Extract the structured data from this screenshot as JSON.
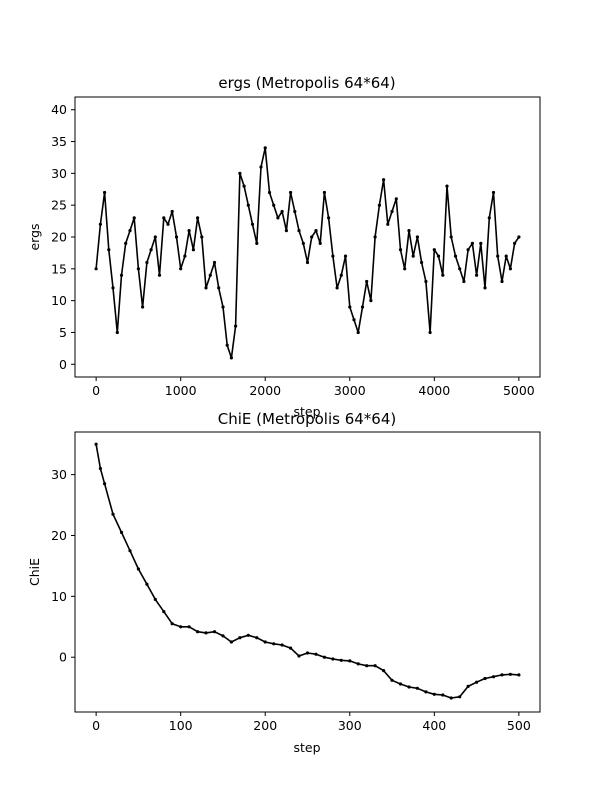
{
  "chart_data": [
    {
      "type": "line",
      "title": "ergs (Metropolis 64*64)",
      "xlabel": "step",
      "ylabel": "ergs",
      "xlim": [
        -250,
        5250
      ],
      "ylim": [
        -2,
        42
      ],
      "xticks": [
        0,
        1000,
        2000,
        3000,
        4000,
        5000
      ],
      "yticks": [
        0,
        5,
        10,
        15,
        20,
        25,
        30,
        35,
        40
      ],
      "marker": "small dots with connecting line",
      "color": "#000000",
      "series": [
        {
          "x": [
            0,
            50,
            100,
            150,
            200,
            250,
            300,
            350,
            400,
            450,
            500,
            550,
            600,
            650,
            700,
            750,
            800,
            850,
            900,
            950,
            1000,
            1050,
            1100,
            1150,
            1200,
            1250,
            1300,
            1350,
            1400,
            1450,
            1500,
            1550,
            1600,
            1650,
            1700,
            1750,
            1800,
            1850,
            1900,
            1950,
            2000,
            2050,
            2100,
            2150,
            2200,
            2250,
            2300,
            2350,
            2400,
            2450,
            2500,
            2550,
            2600,
            2650,
            2700,
            2750,
            2800,
            2850,
            2900,
            2950,
            3000,
            3050,
            3100,
            3150,
            3200,
            3250,
            3300,
            3350,
            3400,
            3450,
            3500,
            3550,
            3600,
            3650,
            3700,
            3750,
            3800,
            3850,
            3900,
            3950,
            4000,
            4050,
            4100,
            4150,
            4200,
            4250,
            4300,
            4350,
            4400,
            4450,
            4500,
            4550,
            4600,
            4650,
            4700,
            4750,
            4800,
            4850,
            4900,
            4950,
            5000
          ],
          "y": [
            15,
            22,
            27,
            18,
            12,
            5,
            14,
            19,
            21,
            23,
            15,
            9,
            16,
            18,
            20,
            14,
            23,
            22,
            24,
            20,
            15,
            17,
            21,
            18,
            23,
            20,
            12,
            14,
            16,
            12,
            9,
            3,
            1,
            6,
            30,
            28,
            25,
            22,
            19,
            31,
            34,
            27,
            25,
            23,
            24,
            21,
            27,
            24,
            21,
            19,
            16,
            20,
            21,
            19,
            27,
            23,
            17,
            12,
            14,
            17,
            9,
            7,
            5,
            9,
            13,
            10,
            20,
            25,
            29,
            22,
            24,
            26,
            18,
            15,
            21,
            17,
            20,
            16,
            13,
            5,
            18,
            17,
            14,
            28,
            20,
            17,
            15,
            13,
            18,
            19,
            14,
            19,
            12,
            23,
            27,
            17,
            13,
            17,
            15,
            19,
            20
          ]
        }
      ]
    },
    {
      "type": "line",
      "title": "ChiE (Metropolis 64*64)",
      "xlabel": "step",
      "ylabel": "ChiE",
      "xlim": [
        -25,
        525
      ],
      "ylim": [
        -9,
        37
      ],
      "xticks": [
        0,
        100,
        200,
        300,
        400,
        500
      ],
      "yticks": [
        0,
        10,
        20,
        30
      ],
      "marker": "small dots with connecting line",
      "color": "#000000",
      "series": [
        {
          "x": [
            0,
            5,
            10,
            20,
            30,
            40,
            50,
            60,
            70,
            80,
            90,
            100,
            110,
            120,
            130,
            140,
            150,
            160,
            170,
            180,
            190,
            200,
            210,
            220,
            230,
            240,
            250,
            260,
            270,
            280,
            290,
            300,
            310,
            320,
            330,
            340,
            350,
            360,
            370,
            380,
            390,
            400,
            410,
            420,
            430,
            440,
            450,
            460,
            470,
            480,
            490,
            500
          ],
          "y": [
            35,
            31,
            28.5,
            23.5,
            20.5,
            17.5,
            14.5,
            12,
            9.5,
            7.5,
            5.5,
            5,
            5,
            4.2,
            4,
            4.2,
            3.5,
            2.5,
            3.2,
            3.6,
            3.2,
            2.5,
            2.2,
            2,
            1.5,
            0.2,
            0.7,
            0.5,
            0,
            -0.3,
            -0.5,
            -0.6,
            -1.1,
            -1.4,
            -1.4,
            -2.2,
            -3.8,
            -4.4,
            -4.9,
            -5.1,
            -5.7,
            -6.1,
            -6.2,
            -6.7,
            -6.5,
            -4.8,
            -4.1,
            -3.5,
            -3.2,
            -2.9,
            -2.8,
            -2.9
          ]
        }
      ]
    }
  ]
}
